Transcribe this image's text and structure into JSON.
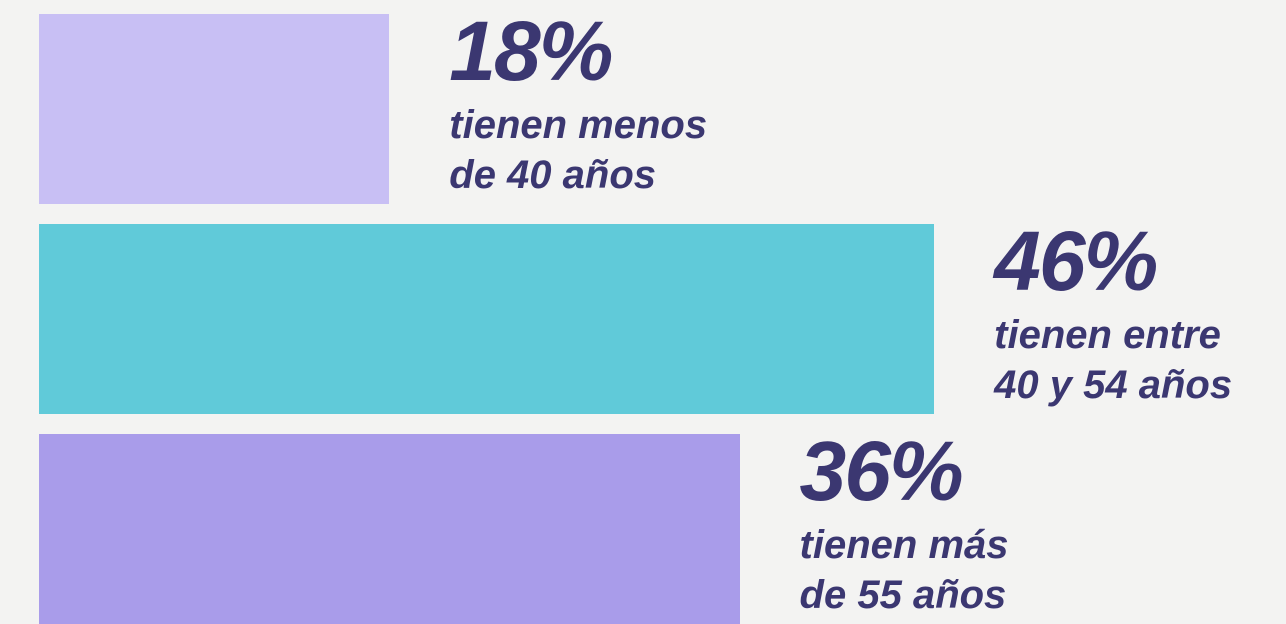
{
  "chart_data": {
    "type": "bar",
    "orientation": "horizontal",
    "categories": [
      "tienen menos\nde 40 años",
      "tienen entre\n40 y 54 años",
      "tienen más\nde 55 años"
    ],
    "values": [
      18,
      46,
      36
    ],
    "value_labels": [
      "18%",
      "46%",
      "36%"
    ],
    "colors": [
      "#c8bff4",
      "#60cad9",
      "#a99cea"
    ],
    "text_color": "#3b3771"
  }
}
